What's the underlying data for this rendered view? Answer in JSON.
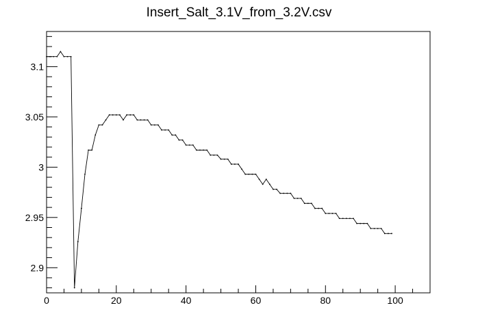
{
  "chart_data": {
    "type": "line",
    "title": "Insert_Salt_3.1V_from_3.2V.csv",
    "xlabel": "",
    "ylabel": "",
    "xlim": [
      0,
      110
    ],
    "ylim": [
      2.875,
      3.135
    ],
    "grid": false,
    "x_ticks": [
      {
        "value": 0,
        "label": "0"
      },
      {
        "value": 20,
        "label": "20"
      },
      {
        "value": 40,
        "label": "40"
      },
      {
        "value": 60,
        "label": "60"
      },
      {
        "value": 80,
        "label": "80"
      },
      {
        "value": 100,
        "label": "100"
      }
    ],
    "y_ticks": [
      {
        "value": 2.9,
        "label": "2.9"
      },
      {
        "value": 2.95,
        "label": "2.95"
      },
      {
        "value": 3.0,
        "label": "3"
      },
      {
        "value": 3.05,
        "label": "3.05"
      },
      {
        "value": 3.1,
        "label": "3.1"
      }
    ],
    "series": [
      {
        "x": [
          0,
          1,
          2,
          3,
          4,
          5,
          6,
          7,
          8,
          9,
          10,
          11,
          12,
          13,
          14,
          15,
          16,
          17,
          18,
          19,
          20,
          21,
          22,
          23,
          24,
          25,
          26,
          27,
          28,
          29,
          30,
          31,
          32,
          33,
          34,
          35,
          36,
          37,
          38,
          39,
          40,
          41,
          42,
          43,
          44,
          45,
          46,
          47,
          48,
          49,
          50,
          51,
          52,
          53,
          54,
          55,
          56,
          57,
          58,
          59,
          60,
          61,
          62,
          63,
          64,
          65,
          66,
          67,
          68,
          69,
          70,
          71,
          72,
          73,
          74,
          75,
          76,
          77,
          78,
          79,
          80,
          81,
          82,
          83,
          84,
          85,
          86,
          87,
          88,
          89,
          90,
          91,
          92,
          93,
          94,
          95,
          96,
          97,
          98,
          99
        ],
        "values": [
          3.11,
          3.11,
          3.11,
          3.11,
          3.115,
          3.11,
          3.11,
          3.11,
          2.88,
          2.926,
          2.959,
          2.993,
          3.017,
          3.017,
          3.032,
          3.042,
          3.042,
          3.047,
          3.052,
          3.052,
          3.052,
          3.052,
          3.047,
          3.052,
          3.052,
          3.052,
          3.047,
          3.047,
          3.047,
          3.047,
          3.042,
          3.042,
          3.042,
          3.037,
          3.037,
          3.037,
          3.032,
          3.032,
          3.027,
          3.027,
          3.022,
          3.022,
          3.022,
          3.017,
          3.017,
          3.017,
          3.017,
          3.012,
          3.012,
          3.012,
          3.008,
          3.008,
          3.008,
          3.003,
          3.003,
          3.003,
          2.998,
          2.993,
          2.993,
          2.993,
          2.993,
          2.988,
          2.983,
          2.988,
          2.983,
          2.978,
          2.978,
          2.974,
          2.974,
          2.974,
          2.974,
          2.969,
          2.969,
          2.969,
          2.964,
          2.964,
          2.964,
          2.959,
          2.959,
          2.959,
          2.954,
          2.954,
          2.954,
          2.954,
          2.949,
          2.949,
          2.949,
          2.949,
          2.949,
          2.944,
          2.944,
          2.944,
          2.944,
          2.939,
          2.939,
          2.939,
          2.939,
          2.934,
          2.934,
          2.934
        ]
      }
    ]
  }
}
